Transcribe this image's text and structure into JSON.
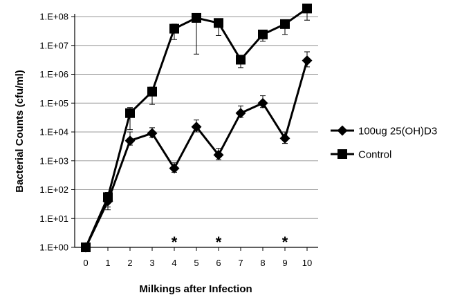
{
  "chart_data": {
    "type": "line",
    "title": "",
    "xlabel": "Milkings after Infection",
    "ylabel": "Bacterial Counts (cfu/ml)",
    "yscale": "log",
    "ylim": [
      1,
      100000000
    ],
    "xlim": [
      -0.5,
      10.5
    ],
    "grid": true,
    "legend_position": "right",
    "x": [
      0,
      1,
      2,
      3,
      4,
      5,
      6,
      7,
      8,
      9,
      10
    ],
    "x_tick_labels": [
      "0",
      "1",
      "2",
      "3",
      "4",
      "5",
      "6",
      "7",
      "8",
      "9",
      "10"
    ],
    "y_tick_labels": [
      "1.E+00",
      "1.E+01",
      "1.E+02",
      "1.E+03",
      "1.E+04",
      "1.E+05",
      "1.E+06",
      "1.E+07",
      "1.E+08"
    ],
    "series": [
      {
        "name": "100ug 25(OH)D3",
        "marker": "diamond",
        "values": [
          1,
          40,
          5000,
          9000,
          550,
          15000,
          1600,
          45000,
          100000,
          6000,
          3000000
        ],
        "error_upper": [
          1,
          60,
          10000,
          14000,
          850,
          26000,
          2700,
          80000,
          180000,
          10000,
          6000000
        ],
        "error_lower": [
          1,
          25,
          3500,
          6500,
          400,
          10000,
          1100,
          32000,
          70000,
          4000,
          1800000
        ]
      },
      {
        "name": "Control",
        "marker": "square",
        "values": [
          1,
          55,
          45000,
          250000,
          38000000,
          90000000,
          60000000,
          3200000,
          24000000,
          55000000,
          190000000
        ],
        "error_upper": [
          1,
          80,
          70000,
          360000,
          55000000,
          95000000,
          80000000,
          4500000,
          34000000,
          75000000,
          240000000
        ],
        "error_lower": [
          1,
          20,
          12000,
          90000,
          16000000,
          5000000,
          22000000,
          1700000,
          14000000,
          24000000,
          75000000
        ]
      }
    ],
    "annotations": [
      {
        "text": "*",
        "x": 4
      },
      {
        "text": "*",
        "x": 6
      },
      {
        "text": "*",
        "x": 9
      }
    ]
  }
}
